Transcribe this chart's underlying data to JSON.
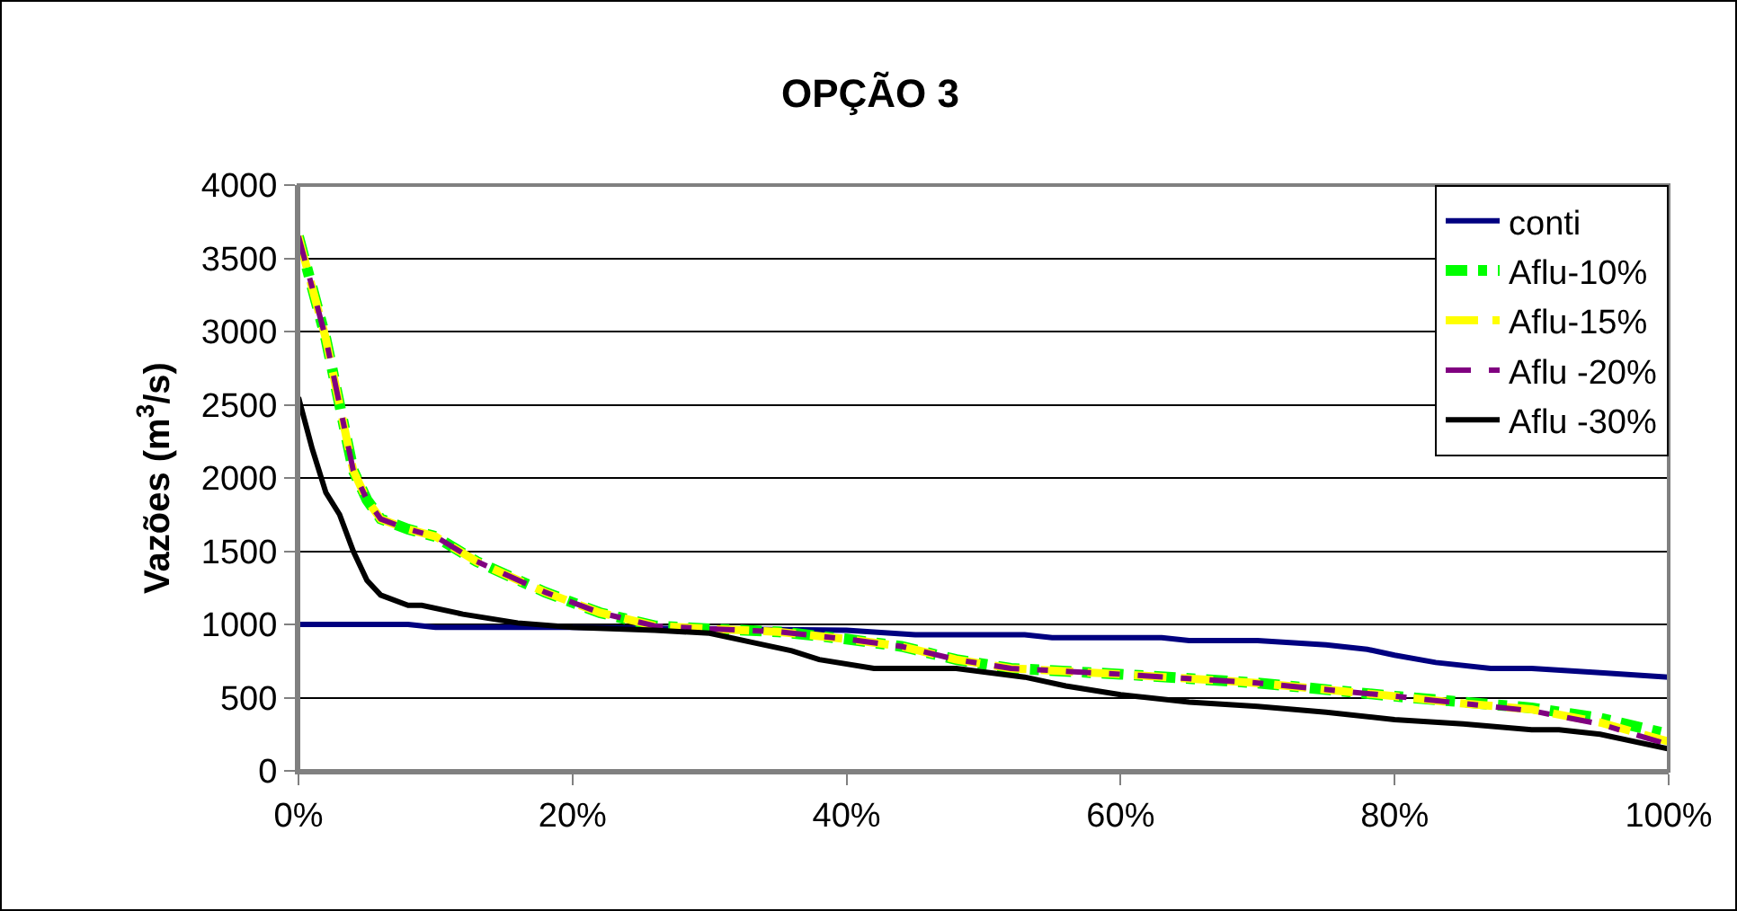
{
  "chart_data": {
    "type": "line",
    "title": "OPÇÃO 3",
    "ylabel": "Vazões (m$^{3}$/s)",
    "xlim": [
      0,
      100
    ],
    "xticks": [
      {
        "value": 0,
        "label": "0%"
      },
      {
        "value": 20,
        "label": "20%"
      },
      {
        "value": 40,
        "label": "40%"
      },
      {
        "value": 60,
        "label": "60%"
      },
      {
        "value": 80,
        "label": "80%"
      },
      {
        "value": 100,
        "label": "100%"
      }
    ],
    "ylim": [
      0,
      4000
    ],
    "yticks": [
      0,
      500,
      1000,
      1500,
      2000,
      2500,
      3000,
      3500,
      4000
    ],
    "grid": "y",
    "legend": "top right",
    "series": [
      {
        "name": "conti",
        "color": "#000080",
        "line_style": "solid",
        "x": [
          0,
          8,
          10,
          20,
          30,
          40,
          45,
          53,
          55,
          63,
          65,
          70,
          75,
          78,
          80,
          83,
          87,
          90,
          95,
          100
        ],
        "values": [
          1000,
          1000,
          980,
          980,
          970,
          960,
          930,
          930,
          910,
          910,
          890,
          890,
          860,
          830,
          790,
          740,
          700,
          700,
          670,
          640
        ]
      },
      {
        "name": "Aflu-10%",
        "color": "#00ff00",
        "line_style": "dashed",
        "x": [
          0,
          2,
          4,
          5,
          6,
          8,
          10,
          13,
          18,
          22,
          26,
          30,
          35,
          40,
          44,
          48,
          52,
          60,
          70,
          80,
          85,
          90,
          95,
          100
        ],
        "values": [
          3650,
          2950,
          2050,
          1850,
          1720,
          1650,
          1600,
          1430,
          1220,
          1080,
          990,
          970,
          950,
          900,
          850,
          760,
          700,
          660,
          600,
          510,
          470,
          430,
          360,
          250
        ]
      },
      {
        "name": "Aflu-15%",
        "color": "#ffff00",
        "line_style": "dashed",
        "x": [
          0,
          2,
          4,
          5,
          6,
          8,
          10,
          13,
          18,
          22,
          26,
          30,
          35,
          40,
          44,
          48,
          52,
          60,
          70,
          80,
          85,
          90,
          95,
          100
        ],
        "values": [
          3650,
          2950,
          2050,
          1850,
          1720,
          1650,
          1600,
          1430,
          1220,
          1080,
          990,
          970,
          950,
          900,
          850,
          760,
          700,
          660,
          600,
          510,
          460,
          420,
          330,
          200
        ]
      },
      {
        "name": "Aflu -20%",
        "color": "#800080",
        "line_style": "dashed",
        "x": [
          0,
          2,
          4,
          5,
          6,
          8,
          10,
          13,
          18,
          22,
          26,
          30,
          35,
          40,
          44,
          48,
          52,
          60,
          70,
          80,
          85,
          90,
          95,
          100
        ],
        "values": [
          3650,
          2950,
          2050,
          1850,
          1720,
          1650,
          1600,
          1430,
          1220,
          1080,
          990,
          970,
          950,
          900,
          850,
          760,
          700,
          660,
          600,
          510,
          460,
          410,
          320,
          180
        ]
      },
      {
        "name": "Aflu -30%",
        "color": "#000000",
        "line_style": "solid",
        "x": [
          0,
          1,
          2,
          3,
          4,
          5,
          6,
          8,
          9,
          12,
          16,
          20,
          26,
          30,
          33,
          36,
          38,
          42,
          48,
          53,
          56,
          60,
          65,
          70,
          75,
          80,
          85,
          90,
          92,
          95,
          100
        ],
        "values": [
          2550,
          2200,
          1900,
          1750,
          1500,
          1300,
          1200,
          1130,
          1130,
          1070,
          1010,
          980,
          960,
          940,
          880,
          820,
          760,
          700,
          700,
          640,
          580,
          520,
          470,
          440,
          400,
          350,
          320,
          280,
          280,
          250,
          150
        ]
      }
    ]
  }
}
